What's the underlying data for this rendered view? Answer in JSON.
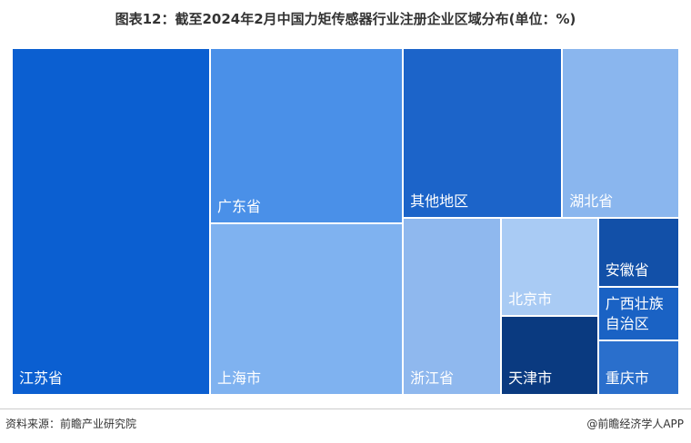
{
  "chart_data": {
    "type": "treemap",
    "title": "图表12：截至2024年2月中国力矩传感器行业注册企业区域分布(单位：%)",
    "categories": [
      "江苏省",
      "广东省",
      "上海市",
      "其他地区",
      "湖北省",
      "浙江省",
      "北京市",
      "天津市",
      "安徽省",
      "广西壮族自治区",
      "重庆市"
    ],
    "values": [
      29.7,
      14.6,
      14.3,
      11.7,
      8.6,
      7.5,
      4.1,
      3.3,
      2.4,
      1.9,
      1.9
    ],
    "colors": [
      "#0b5fd1",
      "#4a90e8",
      "#7fb2f0",
      "#1c64c9",
      "#8ab6ee",
      "#8fb8ee",
      "#a9cbf4",
      "#0a3a80",
      "#1250a8",
      "#1a62c4",
      "#2a6fcc"
    ],
    "source": "资料来源：前瞻产业研究院",
    "credit": "@前瞻经济学人APP"
  }
}
